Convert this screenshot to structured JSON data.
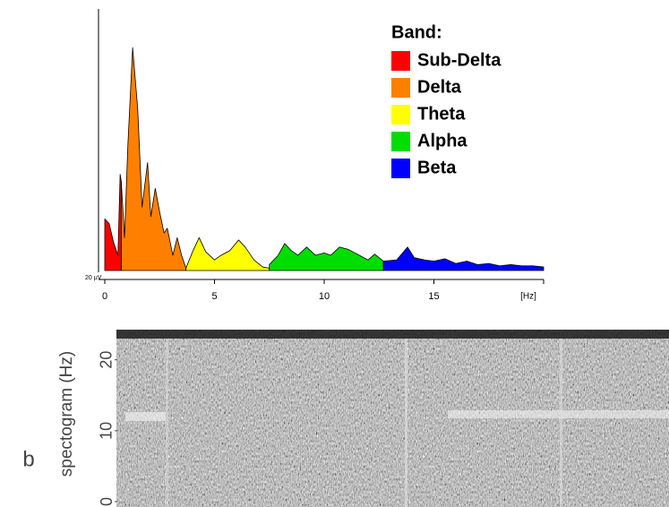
{
  "chart_data": [
    {
      "type": "area",
      "legend_title": "Band:",
      "x_label": "[Hz]",
      "y_label": "20 µV",
      "xlim": [
        0,
        20
      ],
      "xticks": [
        0,
        5,
        10,
        15
      ],
      "ylim": [
        0,
        10
      ],
      "series": [
        {
          "name": "Sub-Delta",
          "color": "#ff0000",
          "x": [
            0,
            0.2,
            0.4,
            0.6,
            0.7,
            0.75
          ],
          "values": [
            2.2,
            2.0,
            1.2,
            0.65,
            4.1,
            3.8
          ]
        },
        {
          "name": "Delta",
          "color": "#ff8000",
          "x": [
            0.75,
            0.9,
            1.05,
            1.27,
            1.5,
            1.7,
            1.95,
            2.1,
            2.3,
            2.5,
            2.7,
            2.85,
            3.1,
            3.3,
            3.5,
            3.7
          ],
          "values": [
            3.8,
            1.4,
            5.3,
            9.5,
            6.9,
            2.7,
            4.6,
            2.3,
            3.5,
            2.5,
            1.6,
            1.8,
            0.65,
            1.4,
            0.65,
            0.1
          ]
        },
        {
          "name": "Theta",
          "color": "#ffff00",
          "x": [
            3.7,
            4.0,
            4.3,
            4.6,
            5.0,
            5.3,
            5.7,
            6.1,
            6.4,
            6.8,
            7.2,
            7.5
          ],
          "values": [
            0.1,
            0.8,
            1.4,
            0.8,
            0.45,
            0.65,
            0.85,
            1.3,
            1.0,
            0.45,
            0.15,
            0.1
          ]
        },
        {
          "name": "Alpha",
          "color": "#00dd00",
          "x": [
            7.5,
            7.9,
            8.2,
            8.5,
            8.8,
            9.2,
            9.6,
            10.0,
            10.3,
            10.7,
            11.1,
            11.6,
            12.0,
            12.3,
            12.7
          ],
          "values": [
            0.25,
            0.65,
            1.15,
            0.85,
            0.65,
            1.0,
            0.65,
            0.75,
            0.65,
            1.0,
            0.9,
            0.65,
            0.45,
            0.7,
            0.4
          ]
        },
        {
          "name": "Beta",
          "color": "#0000ff",
          "x": [
            12.7,
            13.3,
            13.8,
            14.1,
            14.6,
            15.0,
            15.5,
            16.0,
            16.5,
            17.0,
            17.5,
            18.0,
            18.5,
            19.0,
            19.5,
            20.0
          ],
          "values": [
            0.4,
            0.45,
            1.0,
            0.55,
            0.45,
            0.4,
            0.5,
            0.3,
            0.4,
            0.25,
            0.3,
            0.2,
            0.25,
            0.2,
            0.2,
            0.15
          ]
        }
      ]
    },
    {
      "type": "spectrogram",
      "panel_label": "b",
      "y_label": "spectogram (Hz)",
      "ylim": [
        0,
        24
      ],
      "yticks": [
        0,
        10,
        20
      ]
    }
  ]
}
